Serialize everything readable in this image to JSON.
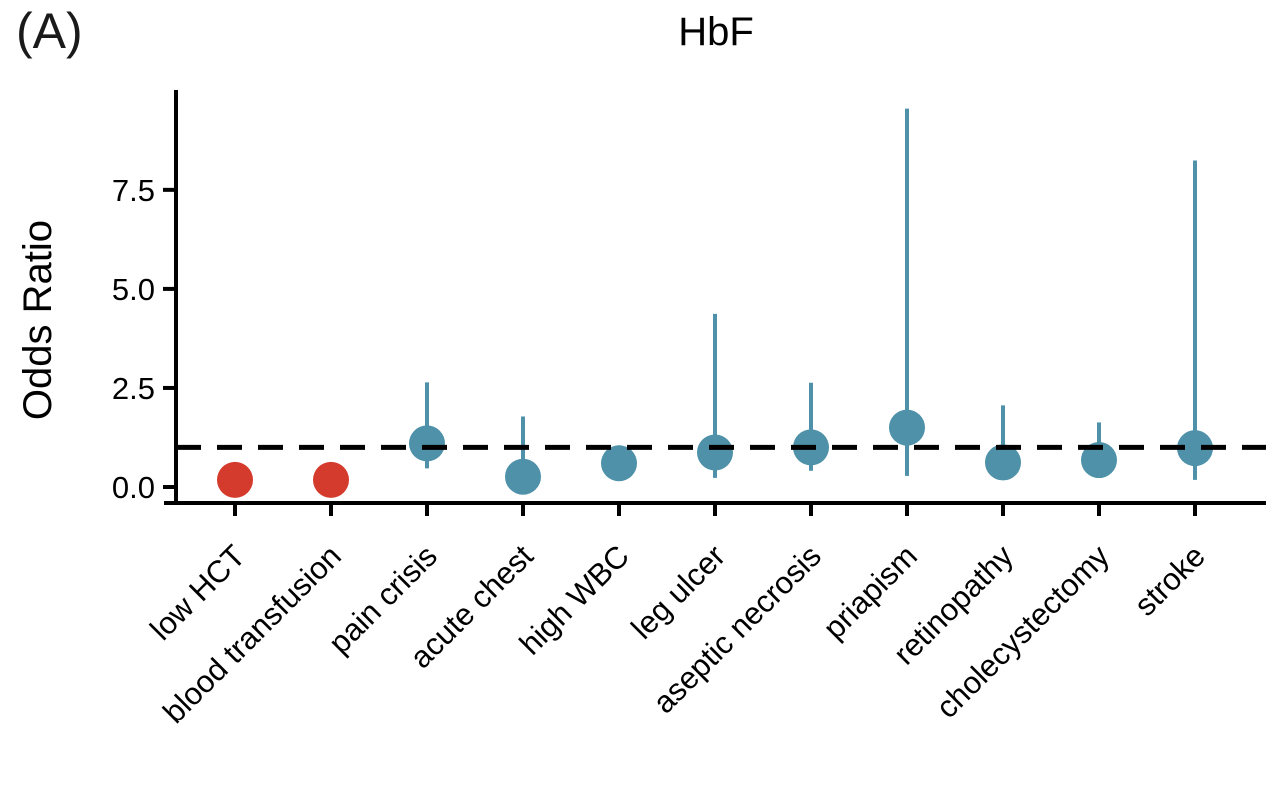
{
  "figure": {
    "panel_label": "(A)",
    "title": "HbF",
    "y_axis_title": "Odds Ratio"
  },
  "chart_data": {
    "type": "scatter",
    "subtype": "forest_plot_pointrange",
    "title": "HbF",
    "panel_label": "(A)",
    "xlabel": "",
    "ylabel": "Odds Ratio",
    "ylim": [
      -0.4,
      10.0
    ],
    "yticks": [
      0.0,
      2.5,
      5.0,
      7.5
    ],
    "ytick_labels": [
      "0.0",
      "2.5",
      "5.0",
      "7.5"
    ],
    "grid": false,
    "legend_position": "none",
    "reference_line": {
      "value": 1.0,
      "style": "dashed",
      "color": "#000000"
    },
    "colors": {
      "significant_red": "#D53B2C",
      "nonsignificant_teal": "#4E91A8"
    },
    "categories": [
      "low HCT",
      "blood transfusion",
      "pain crisis",
      "acute chest",
      "high WBC",
      "leg ulcer",
      "aseptic necrosis",
      "priapism",
      "retinopathy",
      "cholecystectomy",
      "stroke"
    ],
    "points": [
      {
        "label": "low HCT",
        "odds_ratio": 0.18,
        "ci_low": 0.18,
        "ci_high": 0.18,
        "color_key": "significant_red"
      },
      {
        "label": "blood transfusion",
        "odds_ratio": 0.18,
        "ci_low": 0.18,
        "ci_high": 0.18,
        "color_key": "significant_red"
      },
      {
        "label": "pain crisis",
        "odds_ratio": 1.1,
        "ci_low": 0.47,
        "ci_high": 2.64,
        "color_key": "nonsignificant_teal"
      },
      {
        "label": "acute chest",
        "odds_ratio": 0.26,
        "ci_low": 0.26,
        "ci_high": 1.78,
        "color_key": "nonsignificant_teal"
      },
      {
        "label": "high WBC",
        "odds_ratio": 0.6,
        "ci_low": 0.6,
        "ci_high": 1.05,
        "color_key": "nonsignificant_teal"
      },
      {
        "label": "leg ulcer",
        "odds_ratio": 0.87,
        "ci_low": 0.23,
        "ci_high": 4.37,
        "color_key": "nonsignificant_teal"
      },
      {
        "label": "aseptic necrosis",
        "odds_ratio": 1.0,
        "ci_low": 0.41,
        "ci_high": 2.63,
        "color_key": "nonsignificant_teal"
      },
      {
        "label": "priapism",
        "odds_ratio": 1.5,
        "ci_low": 0.28,
        "ci_high": 9.55,
        "color_key": "nonsignificant_teal"
      },
      {
        "label": "retinopathy",
        "odds_ratio": 0.62,
        "ci_low": 0.62,
        "ci_high": 2.06,
        "color_key": "nonsignificant_teal"
      },
      {
        "label": "cholecystectomy",
        "odds_ratio": 0.68,
        "ci_low": 0.68,
        "ci_high": 1.63,
        "color_key": "nonsignificant_teal"
      },
      {
        "label": "stroke",
        "odds_ratio": 0.98,
        "ci_low": 0.18,
        "ci_high": 8.24,
        "color_key": "nonsignificant_teal"
      }
    ]
  }
}
